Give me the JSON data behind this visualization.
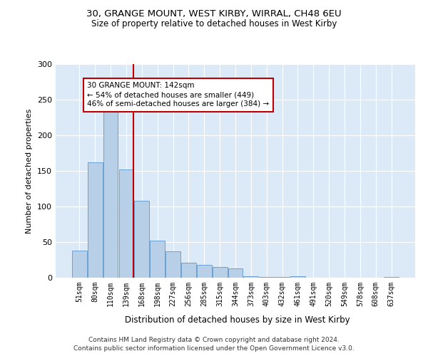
{
  "title1": "30, GRANGE MOUNT, WEST KIRBY, WIRRAL, CH48 6EU",
  "title2": "Size of property relative to detached houses in West Kirby",
  "xlabel": "Distribution of detached houses by size in West Kirby",
  "ylabel": "Number of detached properties",
  "categories": [
    "51sqm",
    "80sqm",
    "110sqm",
    "139sqm",
    "168sqm",
    "198sqm",
    "227sqm",
    "256sqm",
    "285sqm",
    "315sqm",
    "344sqm",
    "373sqm",
    "403sqm",
    "432sqm",
    "461sqm",
    "491sqm",
    "520sqm",
    "549sqm",
    "578sqm",
    "608sqm",
    "637sqm"
  ],
  "values": [
    38,
    162,
    235,
    152,
    108,
    52,
    37,
    21,
    18,
    15,
    13,
    2,
    1,
    1,
    2,
    0,
    0,
    0,
    0,
    0,
    1
  ],
  "bar_color": "#b8cfe8",
  "bar_edge_color": "#6ca0d4",
  "vline_color": "#c00000",
  "annotation_text": "30 GRANGE MOUNT: 142sqm\n← 54% of detached houses are smaller (449)\n46% of semi-detached houses are larger (384) →",
  "annotation_box_color": "white",
  "annotation_box_edge": "#c00000",
  "ylim": [
    0,
    300
  ],
  "yticks": [
    0,
    50,
    100,
    150,
    200,
    250,
    300
  ],
  "background_color": "#dce9f7",
  "footer1": "Contains HM Land Registry data © Crown copyright and database right 2024.",
  "footer2": "Contains public sector information licensed under the Open Government Licence v3.0."
}
